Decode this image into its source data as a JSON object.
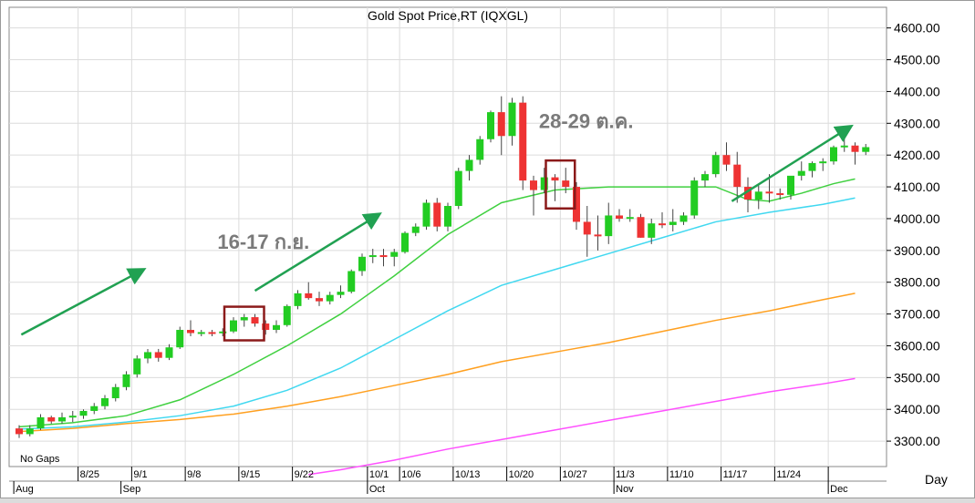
{
  "chart_data": {
    "type": "candlestick",
    "title": "Gold  Spot  Price,RT  (IQXGL)",
    "yaxis": {
      "labels": [
        "3300.00",
        "3400.00",
        "3500.00",
        "3600.00",
        "3700.00",
        "3800.00",
        "3900.00",
        "4000.00",
        "4100.00",
        "4200.00",
        "4300.00",
        "4400.00",
        "4500.00",
        "4600.00"
      ],
      "range": [
        3220,
        4665
      ]
    },
    "xaxis": {
      "unit_label": "Day",
      "day_ticks": [
        {
          "label": "8/25",
          "i": 6
        },
        {
          "label": "9/1",
          "i": 11
        },
        {
          "label": "9/8",
          "i": 16
        },
        {
          "label": "9/15",
          "i": 21
        },
        {
          "label": "9/22",
          "i": 26
        },
        {
          "label": "10/1",
          "i": 33
        },
        {
          "label": "10/6",
          "i": 36
        },
        {
          "label": "10/13",
          "i": 41
        },
        {
          "label": "10/20",
          "i": 46
        },
        {
          "label": "10/27",
          "i": 51
        },
        {
          "label": "11/3",
          "i": 56
        },
        {
          "label": "11/10",
          "i": 61
        },
        {
          "label": "11/17",
          "i": 66
        },
        {
          "label": "11/24",
          "i": 71
        },
        {
          "label": "",
          "i": 76
        }
      ],
      "month_ticks": [
        {
          "label": "Aug",
          "i": 0
        },
        {
          "label": "Sep",
          "i": 10
        },
        {
          "label": "Oct",
          "i": 33
        },
        {
          "label": "Nov",
          "i": 56
        },
        {
          "label": "Dec",
          "i": 76
        }
      ]
    },
    "note": "No  Gaps",
    "annotations": [
      {
        "text": "16-17 ก.ย.",
        "box": [
          20,
          22
        ],
        "text_at": [
          18.5,
          3905
        ]
      },
      {
        "text": "28-29 ต.ค.",
        "box": [
          50,
          51
        ],
        "text_at": [
          48.5,
          4285
        ]
      }
    ],
    "ohlc": [
      [
        3340,
        3350,
        3310,
        3322
      ],
      [
        3322,
        3350,
        3315,
        3340
      ],
      [
        3340,
        3385,
        3335,
        3375
      ],
      [
        3375,
        3380,
        3355,
        3362
      ],
      [
        3362,
        3390,
        3355,
        3375
      ],
      [
        3375,
        3395,
        3360,
        3380
      ],
      [
        3380,
        3400,
        3370,
        3395
      ],
      [
        3395,
        3420,
        3385,
        3410
      ],
      [
        3410,
        3445,
        3400,
        3435
      ],
      [
        3435,
        3480,
        3425,
        3470
      ],
      [
        3470,
        3520,
        3460,
        3510
      ],
      [
        3510,
        3570,
        3500,
        3560
      ],
      [
        3560,
        3590,
        3545,
        3580
      ],
      [
        3580,
        3590,
        3550,
        3562
      ],
      [
        3562,
        3605,
        3555,
        3595
      ],
      [
        3595,
        3660,
        3590,
        3650
      ],
      [
        3650,
        3680,
        3630,
        3640
      ],
      [
        3640,
        3650,
        3630,
        3643
      ],
      [
        3643,
        3650,
        3630,
        3640
      ],
      [
        3640,
        3655,
        3630,
        3645
      ],
      [
        3645,
        3690,
        3640,
        3680
      ],
      [
        3680,
        3700,
        3660,
        3690
      ],
      [
        3690,
        3700,
        3660,
        3670
      ],
      [
        3670,
        3680,
        3635,
        3650
      ],
      [
        3650,
        3680,
        3640,
        3665
      ],
      [
        3665,
        3730,
        3660,
        3725
      ],
      [
        3725,
        3775,
        3715,
        3765
      ],
      [
        3765,
        3800,
        3745,
        3750
      ],
      [
        3750,
        3770,
        3725,
        3740
      ],
      [
        3740,
        3770,
        3730,
        3760
      ],
      [
        3760,
        3790,
        3750,
        3770
      ],
      [
        3770,
        3840,
        3765,
        3835
      ],
      [
        3835,
        3890,
        3820,
        3880
      ],
      [
        3880,
        3905,
        3860,
        3885
      ],
      [
        3885,
        3905,
        3850,
        3880
      ],
      [
        3880,
        3905,
        3850,
        3895
      ],
      [
        3895,
        3960,
        3890,
        3955
      ],
      [
        3955,
        3985,
        3945,
        3975
      ],
      [
        3975,
        4060,
        3965,
        4050
      ],
      [
        4050,
        4065,
        3960,
        3975
      ],
      [
        3975,
        4050,
        3960,
        4040
      ],
      [
        4040,
        4160,
        4030,
        4150
      ],
      [
        4150,
        4200,
        4120,
        4185
      ],
      [
        4185,
        4260,
        4170,
        4250
      ],
      [
        4250,
        4340,
        4240,
        4335
      ],
      [
        4335,
        4385,
        4200,
        4260
      ],
      [
        4260,
        4380,
        4230,
        4365
      ],
      [
        4365,
        4385,
        4090,
        4120
      ],
      [
        4120,
        4135,
        4010,
        4090
      ],
      [
        4090,
        4160,
        4080,
        4130
      ],
      [
        4130,
        4140,
        4055,
        4120
      ],
      [
        4120,
        4160,
        4080,
        4100
      ],
      [
        4100,
        4115,
        3965,
        3990
      ],
      [
        3990,
        4040,
        3880,
        3950
      ],
      [
        3950,
        4010,
        3900,
        3945
      ],
      [
        3945,
        4050,
        3920,
        4010
      ],
      [
        4010,
        4030,
        3990,
        4000
      ],
      [
        4000,
        4030,
        3990,
        4005
      ],
      [
        4005,
        4015,
        3940,
        3940
      ],
      [
        3940,
        4000,
        3920,
        3985
      ],
      [
        3985,
        4020,
        3970,
        3980
      ],
      [
        3980,
        4030,
        3960,
        3990
      ],
      [
        3990,
        4020,
        3980,
        4010
      ],
      [
        4010,
        4130,
        4000,
        4120
      ],
      [
        4120,
        4150,
        4100,
        4140
      ],
      [
        4140,
        4210,
        4130,
        4200
      ],
      [
        4200,
        4240,
        4150,
        4170
      ],
      [
        4170,
        4210,
        4050,
        4100
      ],
      [
        4100,
        4130,
        4020,
        4060
      ],
      [
        4060,
        4110,
        4030,
        4085
      ],
      [
        4085,
        4140,
        4050,
        4080
      ],
      [
        4080,
        4095,
        4060,
        4075
      ],
      [
        4075,
        4130,
        4060,
        4135
      ],
      [
        4135,
        4180,
        4120,
        4150
      ],
      [
        4150,
        4180,
        4130,
        4175
      ],
      [
        4175,
        4190,
        4150,
        4180
      ],
      [
        4180,
        4230,
        4170,
        4225
      ],
      [
        4225,
        4270,
        4210,
        4230
      ],
      [
        4230,
        4240,
        4170,
        4210
      ],
      [
        4210,
        4235,
        4200,
        4225
      ]
    ],
    "ma_series": [
      {
        "color": "#40d040",
        "values": [
          [
            0,
            3345
          ],
          [
            5,
            3358
          ],
          [
            10,
            3380
          ],
          [
            15,
            3430
          ],
          [
            20,
            3510
          ],
          [
            25,
            3600
          ],
          [
            30,
            3700
          ],
          [
            35,
            3820
          ],
          [
            40,
            3950
          ],
          [
            45,
            4050
          ],
          [
            50,
            4090
          ],
          [
            55,
            4100
          ],
          [
            60,
            4100
          ],
          [
            65,
            4100
          ],
          [
            68,
            4060
          ],
          [
            70,
            4055
          ],
          [
            73,
            4080
          ],
          [
            76,
            4110
          ],
          [
            78,
            4125
          ]
        ]
      },
      {
        "color": "#40d8f0",
        "values": [
          [
            0,
            3338
          ],
          [
            5,
            3345
          ],
          [
            10,
            3360
          ],
          [
            15,
            3380
          ],
          [
            20,
            3410
          ],
          [
            25,
            3460
          ],
          [
            30,
            3530
          ],
          [
            35,
            3620
          ],
          [
            40,
            3710
          ],
          [
            45,
            3790
          ],
          [
            50,
            3840
          ],
          [
            55,
            3890
          ],
          [
            60,
            3940
          ],
          [
            65,
            3990
          ],
          [
            70,
            4020
          ],
          [
            75,
            4045
          ],
          [
            78,
            4065
          ]
        ]
      },
      {
        "color": "#ffa020",
        "values": [
          [
            0,
            3330
          ],
          [
            5,
            3340
          ],
          [
            10,
            3355
          ],
          [
            15,
            3368
          ],
          [
            20,
            3385
          ],
          [
            25,
            3410
          ],
          [
            30,
            3440
          ],
          [
            35,
            3475
          ],
          [
            40,
            3510
          ],
          [
            45,
            3550
          ],
          [
            50,
            3580
          ],
          [
            55,
            3610
          ],
          [
            60,
            3645
          ],
          [
            65,
            3680
          ],
          [
            70,
            3710
          ],
          [
            75,
            3745
          ],
          [
            78,
            3765
          ]
        ]
      },
      {
        "color": "#ff50ff",
        "values": [
          [
            27,
            3195
          ],
          [
            30,
            3210
          ],
          [
            35,
            3240
          ],
          [
            40,
            3275
          ],
          [
            45,
            3305
          ],
          [
            50,
            3335
          ],
          [
            55,
            3365
          ],
          [
            60,
            3395
          ],
          [
            65,
            3425
          ],
          [
            70,
            3455
          ],
          [
            75,
            3480
          ],
          [
            78,
            3497
          ]
        ]
      }
    ],
    "trend_arrows": [
      {
        "from": [
          0.2,
          3635
        ],
        "to": [
          11.5,
          3838
        ]
      },
      {
        "from": [
          22,
          3773
        ],
        "to": [
          33.5,
          4012
        ]
      },
      {
        "from": [
          66.5,
          4055
        ],
        "to": [
          77.5,
          4288
        ]
      }
    ],
    "colors": {
      "up": "#22cc22",
      "down": "#ee3333",
      "box": "#8b1a1a",
      "arrow": "#21a152",
      "grid": "#dcdcdc"
    }
  }
}
